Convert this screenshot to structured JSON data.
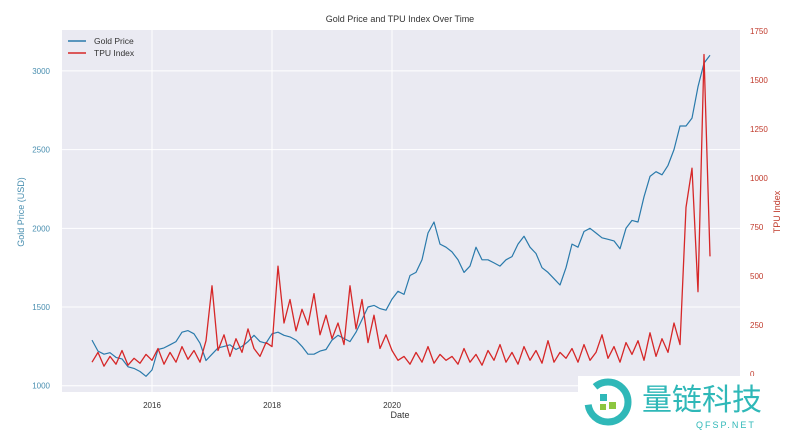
{
  "chart_data": {
    "type": "line",
    "title": "Gold Price and TPU Index Over Time",
    "xlabel": "Date",
    "ylabel": "Gold Price (USD)",
    "ylabel_right": "TPU Index",
    "xlim": [
      2014.5,
      2025.8
    ],
    "ylim": [
      960,
      3260
    ],
    "ylim_right": [
      0,
      1750
    ],
    "x_ticks": [
      "2016",
      "2018",
      "2020"
    ],
    "x_tick_values": [
      2016,
      2018,
      2020
    ],
    "y_ticks": [
      "1000",
      "1500",
      "2000",
      "2500",
      "3000"
    ],
    "y_ticks_right": [
      "0",
      "250",
      "500",
      "750",
      "1000",
      "1250",
      "1500",
      "1750"
    ],
    "grid": true,
    "legend": "top-left",
    "x_start": 2015.0,
    "x_step": 0.1,
    "series": [
      {
        "name": "Gold Price",
        "axis": "left",
        "color": "#2a7aab",
        "values": [
          1290,
          1220,
          1200,
          1210,
          1180,
          1170,
          1120,
          1110,
          1090,
          1060,
          1100,
          1230,
          1240,
          1260,
          1280,
          1340,
          1350,
          1330,
          1270,
          1160,
          1200,
          1240,
          1250,
          1260,
          1230,
          1250,
          1280,
          1320,
          1280,
          1270,
          1330,
          1340,
          1320,
          1310,
          1290,
          1250,
          1200,
          1200,
          1220,
          1230,
          1290,
          1320,
          1300,
          1280,
          1340,
          1420,
          1500,
          1510,
          1490,
          1480,
          1550,
          1600,
          1580,
          1700,
          1720,
          1800,
          1970,
          2040,
          1900,
          1880,
          1850,
          1800,
          1720,
          1760,
          1880,
          1800,
          1800,
          1780,
          1760,
          1800,
          1820,
          1900,
          1950,
          1880,
          1840,
          1750,
          1720,
          1680,
          1640,
          1750,
          1900,
          1880,
          1980,
          2000,
          1970,
          1940,
          1930,
          1920,
          1870,
          2000,
          2050,
          2040,
          2200,
          2330,
          2360,
          2340,
          2400,
          2500,
          2650,
          2650,
          2700,
          2900,
          3050,
          3100
        ]
      },
      {
        "name": "TPU Index",
        "axis": "right",
        "color": "#d62728",
        "values": [
          60,
          110,
          40,
          90,
          50,
          120,
          45,
          80,
          55,
          100,
          70,
          130,
          50,
          110,
          60,
          140,
          75,
          120,
          60,
          170,
          450,
          120,
          200,
          90,
          180,
          110,
          230,
          130,
          90,
          160,
          140,
          550,
          260,
          380,
          220,
          330,
          250,
          410,
          200,
          300,
          180,
          260,
          150,
          450,
          230,
          380,
          160,
          300,
          130,
          200,
          120,
          70,
          90,
          50,
          110,
          60,
          140,
          55,
          100,
          70,
          90,
          50,
          130,
          60,
          100,
          45,
          120,
          70,
          150,
          60,
          110,
          50,
          140,
          70,
          120,
          55,
          170,
          60,
          110,
          80,
          130,
          60,
          150,
          70,
          110,
          200,
          80,
          140,
          60,
          160,
          100,
          170,
          70,
          210,
          90,
          180,
          110,
          260,
          150,
          850,
          1050,
          420,
          1630,
          600
        ]
      }
    ],
    "colors": {
      "background": "#eaeaf2",
      "left_axis": "#4a8fb0",
      "right_axis": "#c0392b"
    }
  },
  "watermark": {
    "text": "量链科技",
    "sub": "QFSP.NET",
    "color": "#2fb8b8"
  }
}
